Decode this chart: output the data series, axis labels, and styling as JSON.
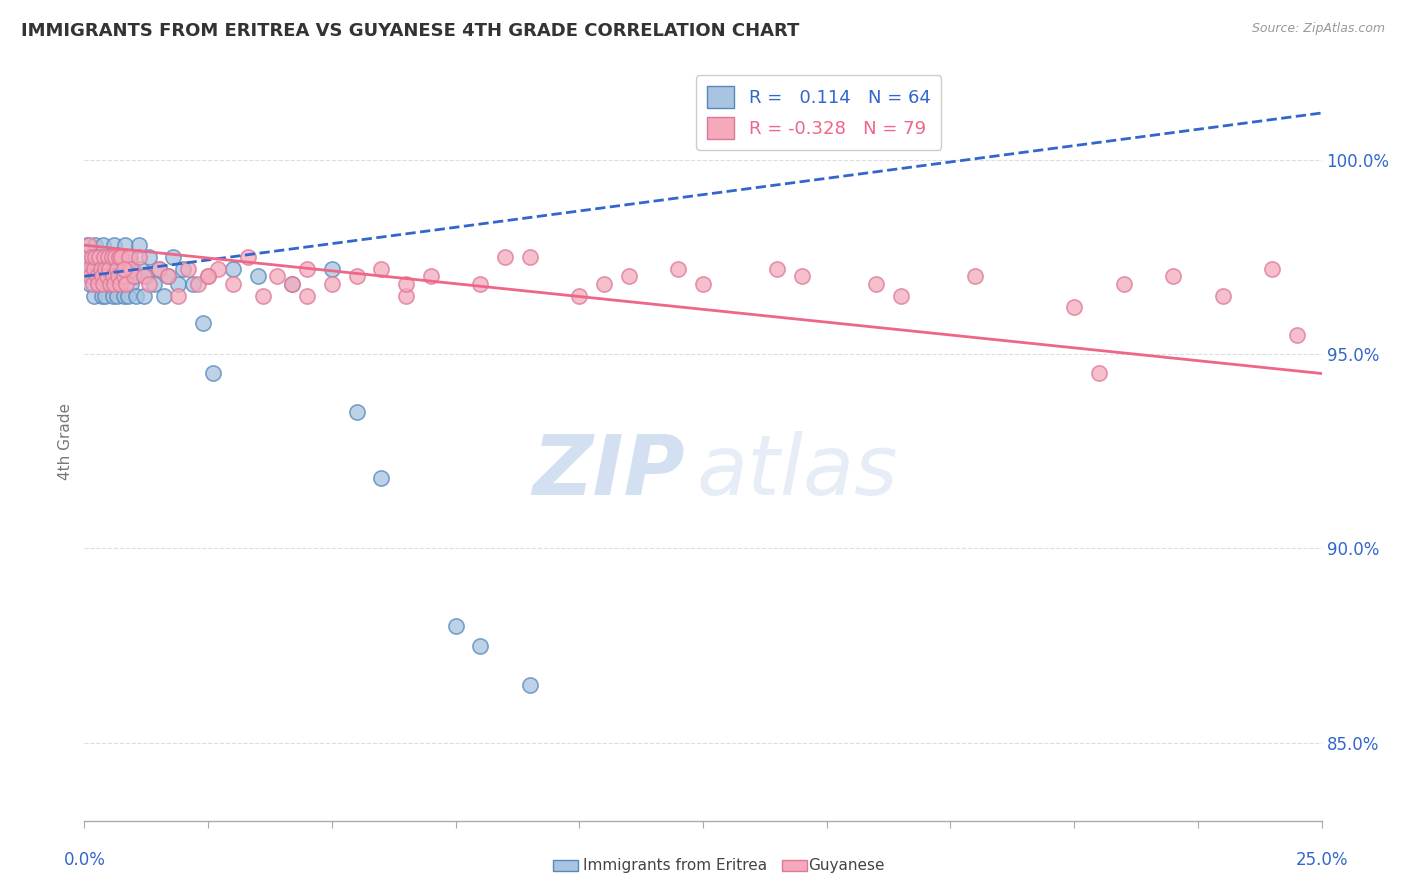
{
  "title": "IMMIGRANTS FROM ERITREA VS GUYANESE 4TH GRADE CORRELATION CHART",
  "source": "Source: ZipAtlas.com",
  "ylabel": "4th Grade",
  "yticks": [
    85.0,
    90.0,
    95.0,
    100.0
  ],
  "xlim": [
    0.0,
    25.0
  ],
  "ylim": [
    83.0,
    102.5
  ],
  "blue_R": 0.114,
  "blue_N": 64,
  "pink_R": -0.328,
  "pink_N": 79,
  "legend_label_blue": "Immigrants from Eritrea",
  "legend_label_pink": "Guyanese",
  "blue_color": "#A8C4E0",
  "pink_color": "#F4AABB",
  "blue_edge_color": "#5588BB",
  "pink_edge_color": "#DD7799",
  "blue_trend_color": "#3366CC",
  "pink_trend_color": "#EE6688",
  "blue_trend_style": "--",
  "pink_trend_style": "-",
  "blue_trend_y0": 97.0,
  "blue_trend_y1": 101.2,
  "pink_trend_y0": 97.8,
  "pink_trend_y1": 94.5,
  "watermark_zip": "ZIP",
  "watermark_atlas": "atlas",
  "blue_scatter_x": [
    0.05,
    0.08,
    0.1,
    0.12,
    0.15,
    0.18,
    0.2,
    0.22,
    0.25,
    0.28,
    0.3,
    0.33,
    0.35,
    0.38,
    0.4,
    0.42,
    0.45,
    0.48,
    0.5,
    0.52,
    0.55,
    0.58,
    0.6,
    0.62,
    0.65,
    0.68,
    0.7,
    0.72,
    0.75,
    0.78,
    0.8,
    0.82,
    0.85,
    0.88,
    0.9,
    0.92,
    0.95,
    0.98,
    1.0,
    1.05,
    1.1,
    1.15,
    1.2,
    1.25,
    1.3,
    1.4,
    1.5,
    1.6,
    1.7,
    1.8,
    1.9,
    2.0,
    2.2,
    2.4,
    2.6,
    3.0,
    3.5,
    4.2,
    5.0,
    5.5,
    6.0,
    7.5,
    8.0,
    9.0
  ],
  "blue_scatter_y": [
    97.8,
    97.2,
    97.5,
    96.8,
    97.3,
    97.0,
    96.5,
    97.8,
    97.2,
    96.8,
    97.5,
    97.0,
    96.5,
    97.8,
    97.2,
    96.5,
    97.0,
    97.5,
    96.8,
    97.2,
    97.0,
    96.5,
    97.8,
    97.2,
    96.5,
    97.0,
    97.5,
    96.8,
    97.2,
    97.0,
    96.5,
    97.8,
    97.2,
    96.5,
    97.0,
    97.5,
    96.8,
    97.2,
    97.0,
    96.5,
    97.8,
    97.2,
    96.5,
    97.0,
    97.5,
    96.8,
    97.2,
    96.5,
    97.0,
    97.5,
    96.8,
    97.2,
    96.8,
    95.8,
    94.5,
    97.2,
    97.0,
    96.8,
    97.2,
    93.5,
    91.8,
    88.0,
    87.5,
    86.5
  ],
  "pink_scatter_x": [
    0.05,
    0.08,
    0.1,
    0.12,
    0.15,
    0.18,
    0.2,
    0.22,
    0.25,
    0.28,
    0.3,
    0.33,
    0.35,
    0.38,
    0.4,
    0.42,
    0.45,
    0.48,
    0.5,
    0.52,
    0.55,
    0.58,
    0.6,
    0.62,
    0.65,
    0.68,
    0.7,
    0.72,
    0.75,
    0.8,
    0.85,
    0.9,
    0.95,
    1.0,
    1.1,
    1.2,
    1.3,
    1.5,
    1.7,
    1.9,
    2.1,
    2.3,
    2.5,
    2.7,
    3.0,
    3.3,
    3.6,
    3.9,
    4.2,
    4.5,
    5.0,
    5.5,
    6.0,
    6.5,
    7.0,
    8.0,
    9.0,
    10.0,
    11.0,
    12.5,
    14.0,
    16.5,
    18.0,
    20.0,
    21.0,
    22.0,
    23.0,
    24.0,
    24.5,
    20.5,
    16.0,
    14.5,
    12.0,
    10.5,
    8.5,
    6.5,
    4.5,
    2.5,
    0.8
  ],
  "pink_scatter_y": [
    97.5,
    97.2,
    97.8,
    97.0,
    97.5,
    96.8,
    97.2,
    97.5,
    97.0,
    96.8,
    97.5,
    97.2,
    97.0,
    96.8,
    97.5,
    97.2,
    97.0,
    97.5,
    97.2,
    96.8,
    97.5,
    97.0,
    96.8,
    97.5,
    97.2,
    97.0,
    97.5,
    96.8,
    97.5,
    97.0,
    96.8,
    97.5,
    97.2,
    97.0,
    97.5,
    97.0,
    96.8,
    97.2,
    97.0,
    96.5,
    97.2,
    96.8,
    97.0,
    97.2,
    96.8,
    97.5,
    96.5,
    97.0,
    96.8,
    97.2,
    96.8,
    97.0,
    97.2,
    96.5,
    97.0,
    96.8,
    97.5,
    96.5,
    97.0,
    96.8,
    97.2,
    96.5,
    97.0,
    96.2,
    96.8,
    97.0,
    96.5,
    97.2,
    95.5,
    94.5,
    96.8,
    97.0,
    97.2,
    96.8,
    97.5,
    96.8,
    96.5,
    97.0,
    97.2
  ]
}
